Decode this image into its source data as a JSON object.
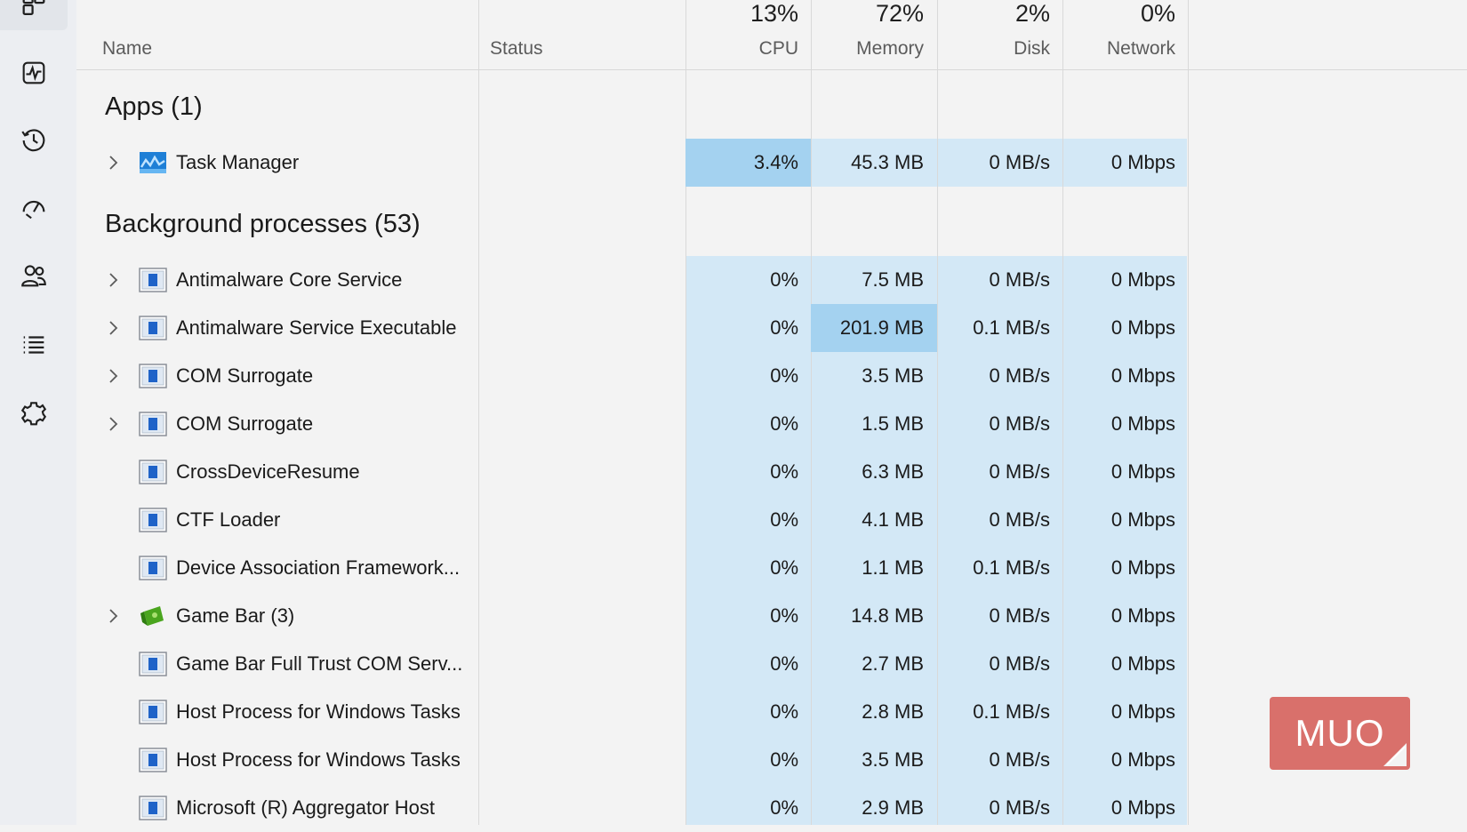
{
  "sidebar": {
    "items": [
      {
        "name": "processes-icon",
        "active": true
      },
      {
        "name": "performance-icon"
      },
      {
        "name": "app-history-icon"
      },
      {
        "name": "startup-apps-icon"
      },
      {
        "name": "users-icon"
      },
      {
        "name": "details-icon"
      },
      {
        "name": "services-icon"
      }
    ]
  },
  "header": {
    "name_label": "Name",
    "status_label": "Status",
    "cpu_label": "CPU",
    "cpu_pct": "13%",
    "memory_label": "Memory",
    "memory_pct": "72%",
    "disk_label": "Disk",
    "disk_pct": "2%",
    "network_label": "Network",
    "network_pct": "0%"
  },
  "groups": {
    "apps": {
      "title": "Apps (1)",
      "rows": [
        {
          "name": "Task Manager",
          "icon": "task-manager-icon",
          "expandable": true,
          "cpu": "3.4%",
          "memory": "45.3 MB",
          "disk": "0 MB/s",
          "network": "0 Mbps",
          "highlight": "cpu"
        }
      ]
    },
    "background": {
      "title": "Background processes (53)",
      "rows": [
        {
          "name": "Antimalware Core Service",
          "icon": "service-icon",
          "expandable": true,
          "cpu": "0%",
          "memory": "7.5 MB",
          "disk": "0 MB/s",
          "network": "0 Mbps"
        },
        {
          "name": "Antimalware Service Executable",
          "icon": "service-icon",
          "expandable": true,
          "cpu": "0%",
          "memory": "201.9 MB",
          "disk": "0.1 MB/s",
          "network": "0 Mbps",
          "highlight": "memory"
        },
        {
          "name": "COM Surrogate",
          "icon": "service-icon",
          "expandable": true,
          "cpu": "0%",
          "memory": "3.5 MB",
          "disk": "0 MB/s",
          "network": "0 Mbps"
        },
        {
          "name": "COM Surrogate",
          "icon": "service-icon",
          "expandable": true,
          "cpu": "0%",
          "memory": "1.5 MB",
          "disk": "0 MB/s",
          "network": "0 Mbps"
        },
        {
          "name": "CrossDeviceResume",
          "icon": "service-icon",
          "expandable": false,
          "cpu": "0%",
          "memory": "6.3 MB",
          "disk": "0 MB/s",
          "network": "0 Mbps"
        },
        {
          "name": "CTF Loader",
          "icon": "service-icon",
          "expandable": false,
          "cpu": "0%",
          "memory": "4.1 MB",
          "disk": "0 MB/s",
          "network": "0 Mbps"
        },
        {
          "name": "Device Association Framework...",
          "icon": "service-icon",
          "expandable": false,
          "cpu": "0%",
          "memory": "1.1 MB",
          "disk": "0.1 MB/s",
          "network": "0 Mbps"
        },
        {
          "name": "Game Bar (3)",
          "icon": "game-bar-icon",
          "expandable": true,
          "cpu": "0%",
          "memory": "14.8 MB",
          "disk": "0 MB/s",
          "network": "0 Mbps"
        },
        {
          "name": "Game Bar Full Trust COM Serv...",
          "icon": "service-icon",
          "expandable": false,
          "cpu": "0%",
          "memory": "2.7 MB",
          "disk": "0 MB/s",
          "network": "0 Mbps"
        },
        {
          "name": "Host Process for Windows Tasks",
          "icon": "service-icon",
          "expandable": false,
          "cpu": "0%",
          "memory": "2.8 MB",
          "disk": "0.1 MB/s",
          "network": "0 Mbps"
        },
        {
          "name": "Host Process for Windows Tasks",
          "icon": "service-icon",
          "expandable": false,
          "cpu": "0%",
          "memory": "3.5 MB",
          "disk": "0 MB/s",
          "network": "0 Mbps"
        },
        {
          "name": "Microsoft (R) Aggregator Host",
          "icon": "service-icon",
          "expandable": false,
          "cpu": "0%",
          "memory": "2.9 MB",
          "disk": "0 MB/s",
          "network": "0 Mbps"
        }
      ]
    }
  },
  "watermark": {
    "text": "MUO",
    "color": "#d9706b"
  },
  "colors": {
    "heat_low": "#d3e8f6",
    "heat_high": "#a4d2f0"
  }
}
